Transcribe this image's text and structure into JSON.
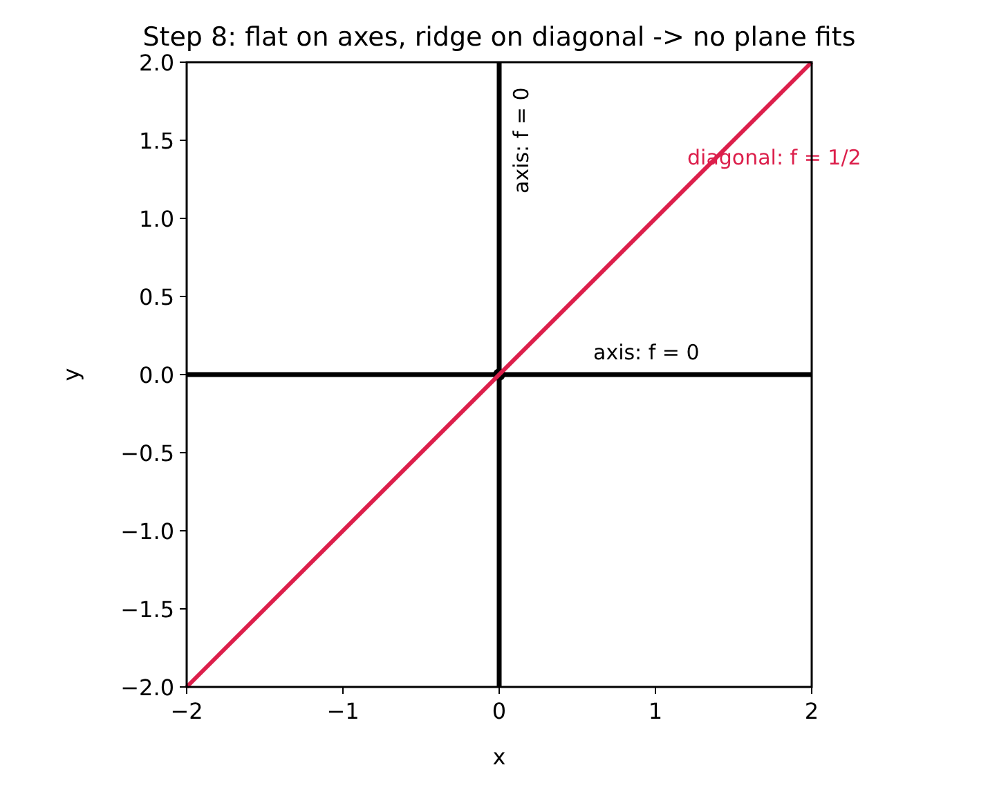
{
  "chart_data": {
    "type": "line",
    "title": "Step 8: flat on axes, ridge on diagonal -> no plane fits",
    "xlabel": "x",
    "ylabel": "y",
    "xlim": [
      -2,
      2
    ],
    "ylim": [
      -2,
      2
    ],
    "xticks": [
      -2,
      -1,
      0,
      1,
      2
    ],
    "yticks": [
      {
        "value": -2,
        "label": "−2.0"
      },
      {
        "value": -1.5,
        "label": "−1.5"
      },
      {
        "value": -1,
        "label": "−1.0"
      },
      {
        "value": -0.5,
        "label": "−0.5"
      },
      {
        "value": 0,
        "label": "0.0"
      },
      0.5,
      {
        "value": 1,
        "label": "1.0"
      },
      1.5,
      {
        "value": 2,
        "label": "2.0"
      }
    ],
    "grid": false,
    "series": [
      {
        "color": "#000000",
        "x": [
          -2,
          2
        ],
        "values": [
          0,
          0
        ]
      },
      {
        "color": "#000000",
        "x": [
          0,
          0
        ],
        "values": [
          -2,
          2
        ]
      },
      {
        "type": "scatter",
        "color": "#000000",
        "x": [
          0
        ],
        "values": [
          0
        ],
        "marker": "circle"
      },
      {
        "color": "#dc1f4b",
        "x": [
          -2,
          2
        ],
        "values": [
          -2,
          2
        ]
      }
    ],
    "annotations": [
      "axis: f = 0",
      "axis: f = 0",
      "diagonal: f = 1/2"
    ]
  }
}
